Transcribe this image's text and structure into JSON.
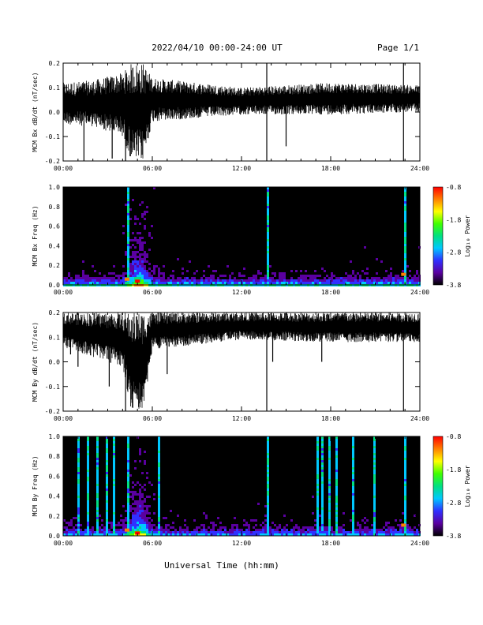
{
  "header": {
    "title": "2022/04/10  00:00-24:00 UT",
    "page": "Page 1/1"
  },
  "footer": {
    "xlabel": "Universal Time (hh:mm)"
  },
  "colorbar": {
    "ticks": [
      "-0.8",
      "-1.8",
      "-2.8",
      "-3.8"
    ],
    "label": "Log₁₀ Power",
    "colors": [
      "#000000",
      "#5a00a0",
      "#3030ff",
      "#00c8ff",
      "#00e080",
      "#40ff00",
      "#ffff00",
      "#ff8000",
      "#ff0000"
    ]
  },
  "chart_data": [
    {
      "type": "line",
      "name": "bx_timeseries",
      "ylabel": "MCM Bx dB/dt (nT/sec)",
      "xlim": [
        0,
        24
      ],
      "ylim": [
        -0.2,
        0.2
      ],
      "xticks": [
        "00:00",
        "06:00",
        "12:00",
        "18:00",
        "24:00"
      ],
      "yticks": [
        "0.2",
        "0.1",
        "0.0",
        "-0.1",
        "-0.2"
      ],
      "baseline": 0.05,
      "envelope": [
        {
          "t": 0,
          "low": -0.05,
          "high": 0.12
        },
        {
          "t": 2,
          "low": -0.06,
          "high": 0.13
        },
        {
          "t": 4,
          "low": -0.1,
          "high": 0.16
        },
        {
          "t": 4.6,
          "low": -0.2,
          "high": 0.2
        },
        {
          "t": 5.4,
          "low": -0.2,
          "high": 0.2
        },
        {
          "t": 6,
          "low": -0.04,
          "high": 0.14
        },
        {
          "t": 12,
          "low": -0.01,
          "high": 0.1
        },
        {
          "t": 18,
          "low": -0.01,
          "high": 0.12
        },
        {
          "t": 24,
          "low": 0.0,
          "high": 0.11
        }
      ],
      "spikes": [
        {
          "t": 1.4,
          "y": -0.2
        },
        {
          "t": 3.3,
          "y": -0.19
        },
        {
          "t": 4.2,
          "y": -0.2
        },
        {
          "t": 13.7,
          "y": -0.2
        },
        {
          "t": 13.7,
          "y": 0.2
        },
        {
          "t": 15.0,
          "y": -0.14
        },
        {
          "t": 22.9,
          "y": -0.2
        },
        {
          "t": 22.9,
          "y": 0.2
        }
      ]
    },
    {
      "type": "heatmap",
      "name": "bx_spectrogram",
      "ylabel": "MCM Bx Freq (Hz)",
      "xlim": [
        0,
        24
      ],
      "ylim": [
        0,
        1.0
      ],
      "xticks": [
        "00:00",
        "06:00",
        "12:00",
        "18:00",
        "24:00"
      ],
      "yticks": [
        "1.0",
        "0.8",
        "0.6",
        "0.4",
        "0.2",
        "0.0"
      ],
      "zlim": [
        -3.8,
        -0.8
      ],
      "broadband_lines": [
        4.3,
        13.7,
        22.9
      ],
      "hotspots": [
        {
          "t": 5.0,
          "f": 0.03,
          "z": -0.8
        },
        {
          "t": 4.3,
          "f": 0.05,
          "z": -1.3
        },
        {
          "t": 22.9,
          "f": 0.1,
          "z": -1.0
        }
      ]
    },
    {
      "type": "line",
      "name": "by_timeseries",
      "ylabel": "MCM By dB/dt (nT/sec)",
      "xlim": [
        0,
        24
      ],
      "ylim": [
        -0.2,
        0.2
      ],
      "xticks": [
        "00:00",
        "06:00",
        "12:00",
        "18:00",
        "24:00"
      ],
      "yticks": [
        "0.2",
        "0.1",
        "0.0",
        "-0.1",
        "-0.2"
      ],
      "baseline": 0.15,
      "envelope": [
        {
          "t": 0,
          "low": 0.06,
          "high": 0.2
        },
        {
          "t": 4.0,
          "low": -0.02,
          "high": 0.2
        },
        {
          "t": 4.6,
          "low": -0.2,
          "high": 0.2
        },
        {
          "t": 5.4,
          "low": -0.2,
          "high": 0.2
        },
        {
          "t": 6.0,
          "low": 0.05,
          "high": 0.2
        },
        {
          "t": 12,
          "low": 0.09,
          "high": 0.2
        },
        {
          "t": 18,
          "low": 0.08,
          "high": 0.2
        },
        {
          "t": 24,
          "low": 0.08,
          "high": 0.2
        }
      ],
      "spikes": [
        {
          "t": 0.5,
          "y": 0.03
        },
        {
          "t": 1.0,
          "y": -0.02
        },
        {
          "t": 3.1,
          "y": -0.1
        },
        {
          "t": 4.2,
          "y": -0.2
        },
        {
          "t": 7.0,
          "y": -0.05
        },
        {
          "t": 13.7,
          "y": -0.2
        },
        {
          "t": 14.1,
          "y": 0.0
        },
        {
          "t": 17.4,
          "y": 0.0
        },
        {
          "t": 22.9,
          "y": -0.2
        }
      ]
    },
    {
      "type": "heatmap",
      "name": "by_spectrogram",
      "ylabel": "MCM By Freq (Hz)",
      "xlim": [
        0,
        24
      ],
      "ylim": [
        0,
        1.0
      ],
      "xticks": [
        "00:00",
        "06:00",
        "12:00",
        "18:00",
        "24:00"
      ],
      "yticks": [
        "1.0",
        "0.8",
        "0.6",
        "0.4",
        "0.2",
        "0.0"
      ],
      "zlim": [
        -3.8,
        -0.8
      ],
      "broadband_lines": [
        0.4,
        1.0,
        1.6,
        2.2,
        2.9,
        3.4,
        4.3,
        6.4,
        7.1,
        13.7,
        16.5,
        17.0,
        17.4,
        17.8,
        18.3,
        19.4,
        20.9,
        22.9
      ],
      "hotspots": [
        {
          "t": 5.0,
          "f": 0.02,
          "z": -0.8
        },
        {
          "t": 4.3,
          "f": 0.05,
          "z": -1.2
        },
        {
          "t": 22.9,
          "f": 0.1,
          "z": -1.0
        }
      ]
    }
  ]
}
